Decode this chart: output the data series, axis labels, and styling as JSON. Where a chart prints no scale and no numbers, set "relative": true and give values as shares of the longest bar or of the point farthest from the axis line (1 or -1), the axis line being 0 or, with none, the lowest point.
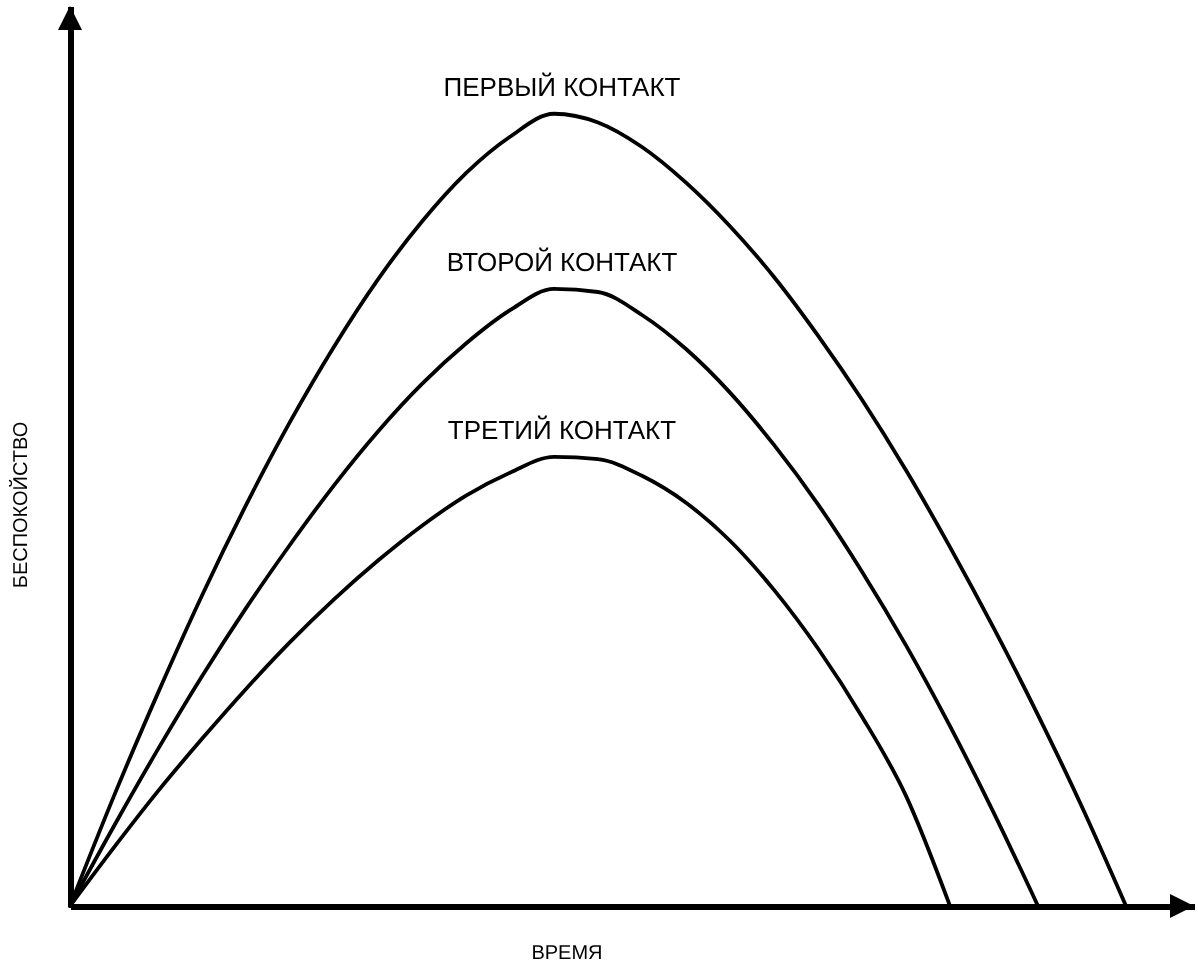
{
  "chart_data": {
    "type": "line",
    "relative": true,
    "xlabel": "ВРЕМЯ",
    "ylabel": "БЕСПОКОЙСТВО",
    "categories": [
      null,
      null,
      null,
      null,
      null,
      null,
      null,
      null,
      null,
      null,
      null,
      null,
      null,
      null,
      null,
      null,
      null,
      null,
      null,
      null,
      null,
      null,
      null,
      null,
      null
    ],
    "series": [
      {
        "name": "ПЕРВЫЙ КОНТАКТ",
        "color": "#000000",
        "values": [
          0,
          0.139,
          0.269,
          0.392,
          0.506,
          0.611,
          0.706,
          0.791,
          0.864,
          0.925,
          0.971,
          1,
          0.989,
          0.958,
          0.913,
          0.858,
          0.794,
          0.72,
          0.639,
          0.55,
          0.453,
          0.35,
          0.241,
          0.125,
          0
        ]
      },
      {
        "name": "ВТОРОЙ КОНТАКТ",
        "color": "#000000",
        "values": [
          0,
          0.101,
          0.198,
          0.29,
          0.376,
          0.456,
          0.531,
          0.599,
          0.659,
          0.71,
          0.752,
          0.779,
          0.775,
          0.746,
          0.703,
          0.648,
          0.582,
          0.507,
          0.422,
          0.329,
          0.227,
          0.117,
          0,
          null,
          null
        ]
      },
      {
        "name": "ТРЕТИЙ КОНТАКТ",
        "color": "#000000",
        "values": [
          0,
          0.074,
          0.145,
          0.211,
          0.274,
          0.333,
          0.387,
          0.436,
          0.48,
          0.518,
          0.547,
          0.567,
          0.564,
          0.543,
          0.509,
          0.461,
          0.399,
          0.325,
          0.239,
          0.139,
          0,
          null,
          null,
          null,
          null
        ]
      }
    ]
  }
}
